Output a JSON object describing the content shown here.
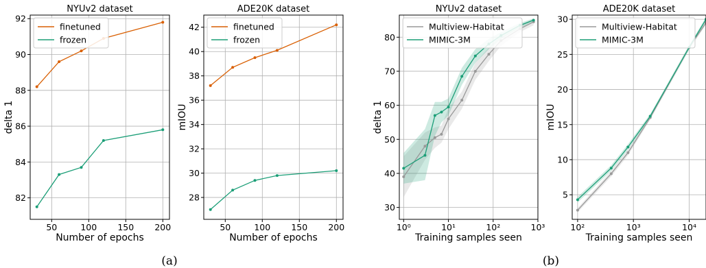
{
  "captions": [
    "(a)",
    "(b)"
  ],
  "colors": {
    "finetuned": "#d95f02",
    "frozen": "#1b9e77",
    "multiview": "#999999",
    "mimic": "#1b9e77"
  },
  "chart_data": [
    {
      "type": "line",
      "title": "NYUv2 dataset",
      "xlabel": "Number of epochs",
      "ylabel": "delta 1",
      "xlim": [
        21,
        209
      ],
      "ylim": [
        80.8,
        92.2
      ],
      "xticks": [
        50,
        100,
        150,
        200
      ],
      "xtick_labels": [
        "50",
        "100",
        "150",
        "200"
      ],
      "yticks": [
        82,
        84,
        86,
        88,
        90,
        92
      ],
      "ytick_labels": [
        "82",
        "84",
        "86",
        "88",
        "90",
        "92"
      ],
      "grid": true,
      "legend_position": "top-left",
      "x": [
        30,
        60,
        90,
        120,
        200
      ],
      "series": [
        {
          "name": "finetuned",
          "color": "#d95f02",
          "values": [
            88.2,
            89.6,
            90.2,
            90.9,
            91.8
          ]
        },
        {
          "name": "frozen",
          "color": "#1b9e77",
          "values": [
            81.5,
            83.3,
            83.7,
            85.2,
            85.8
          ]
        }
      ]
    },
    {
      "type": "line",
      "title": "ADE20K dataset",
      "xlabel": "Number of epochs",
      "ylabel": "mIOU",
      "xlim": [
        21,
        209
      ],
      "ylim": [
        26.2,
        43.0
      ],
      "xticks": [
        50,
        100,
        150,
        200
      ],
      "xtick_labels": [
        "50",
        "100",
        "150",
        "200"
      ],
      "yticks": [
        28,
        30,
        32,
        34,
        36,
        38,
        40,
        42
      ],
      "ytick_labels": [
        "28",
        "30",
        "32",
        "34",
        "36",
        "38",
        "40",
        "42"
      ],
      "grid": true,
      "legend_position": "top-left",
      "x": [
        30,
        60,
        90,
        120,
        200
      ],
      "series": [
        {
          "name": "finetuned",
          "color": "#d95f02",
          "values": [
            37.2,
            38.7,
            39.5,
            40.1,
            42.2
          ]
        },
        {
          "name": "frozen",
          "color": "#1b9e77",
          "values": [
            27.0,
            28.6,
            29.4,
            29.8,
            30.2
          ]
        }
      ]
    },
    {
      "type": "line",
      "title": "NYUv2 dataset",
      "xlabel": "Training samples seen",
      "ylabel": "delta 1",
      "xscale": "log",
      "xlim": [
        0.8,
        1000
      ],
      "ylim": [
        26.5,
        86.5
      ],
      "xticks": [
        1,
        10,
        100,
        1000
      ],
      "xtick_labels": [
        "10⁰",
        "10¹",
        "10²",
        "10³"
      ],
      "yticks": [
        30,
        40,
        50,
        60,
        70,
        80
      ],
      "ytick_labels": [
        "30",
        "40",
        "50",
        "60",
        "70",
        "80"
      ],
      "grid": true,
      "legend_position": "top-left",
      "series": [
        {
          "name": "Multiview-Habitat",
          "color": "#999999",
          "x": [
            1,
            3,
            5,
            7,
            10,
            20,
            40,
            80,
            150,
            400,
            800
          ],
          "values": [
            39.0,
            48.0,
            50.5,
            51.5,
            56.0,
            61.5,
            70.0,
            75.0,
            79.0,
            82.5,
            84.5
          ],
          "band_low": [
            33.0,
            44.0,
            47.5,
            49.0,
            53.0,
            59.0,
            67.5,
            73.0,
            77.5,
            81.5,
            83.5
          ],
          "band_high": [
            45.0,
            52.0,
            53.5,
            54.0,
            59.0,
            64.0,
            72.5,
            77.0,
            80.5,
            83.5,
            85.5
          ]
        },
        {
          "name": "MIMIC-3M",
          "color": "#1b9e77",
          "x": [
            1,
            3,
            5,
            7,
            10,
            20,
            40,
            80,
            150,
            400,
            800
          ],
          "values": [
            41.5,
            45.3,
            57.0,
            58.0,
            59.5,
            68.5,
            74.5,
            78.0,
            80.5,
            83.5,
            85.0
          ],
          "band_low": [
            37.0,
            38.0,
            51.0,
            55.0,
            57.0,
            66.0,
            72.5,
            76.5,
            79.5,
            82.8,
            84.5
          ],
          "band_high": [
            46.0,
            53.0,
            61.0,
            61.0,
            62.0,
            71.0,
            76.5,
            79.5,
            81.5,
            84.2,
            85.5
          ]
        }
      ]
    },
    {
      "type": "line",
      "title": "ADE20K dataset",
      "xlabel": "Training samples seen",
      "ylabel": "mIOU",
      "xscale": "log",
      "xlim": [
        80,
        20000
      ],
      "ylim": [
        1.5,
        30.6
      ],
      "xticks": [
        100,
        1000,
        10000
      ],
      "xtick_labels": [
        "10²",
        "10³",
        "10⁴"
      ],
      "yticks": [
        5,
        10,
        15,
        20,
        25,
        30
      ],
      "ytick_labels": [
        "5",
        "10",
        "15",
        "20",
        "25",
        "30"
      ],
      "grid": true,
      "legend_position": "top-left",
      "series": [
        {
          "name": "Multiview-Habitat",
          "color": "#999999",
          "x": [
            100,
            400,
            800,
            2000,
            10000,
            20000
          ],
          "values": [
            2.8,
            8.0,
            11.0,
            16.0,
            26.0,
            29.5
          ],
          "band_low": [
            2.5,
            7.6,
            10.6,
            15.7,
            25.7,
            29.2
          ],
          "band_high": [
            3.1,
            8.4,
            11.4,
            16.3,
            26.3,
            29.8
          ]
        },
        {
          "name": "MIMIC-3M",
          "color": "#1b9e77",
          "x": [
            100,
            400,
            800,
            2000,
            10000,
            20000
          ],
          "values": [
            4.3,
            8.8,
            11.8,
            16.2,
            26.0,
            30.0
          ],
          "band_low": [
            3.9,
            8.4,
            11.4,
            15.9,
            25.7,
            29.7
          ],
          "band_high": [
            4.7,
            9.2,
            12.2,
            16.5,
            26.3,
            30.3
          ]
        }
      ]
    }
  ]
}
